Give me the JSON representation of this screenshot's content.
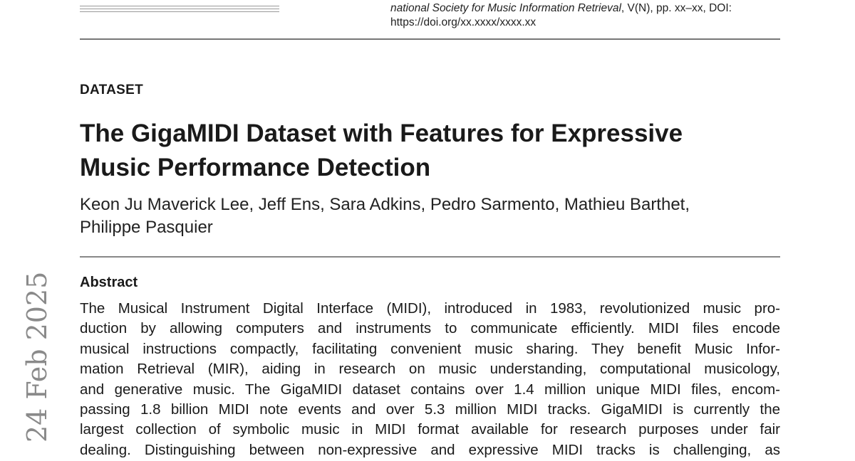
{
  "header": {
    "citation_line1_italic": "national Society for Music Information Retrieval",
    "citation_line1_rest": ", V(N), pp. xx–xx, DOI:",
    "citation_line2": "https://doi.org/xx.xxxx/xxxx.xx"
  },
  "article": {
    "kicker": "DATASET",
    "title_lines": [
      "The GigaMIDI Dataset with Features for Expressive",
      "Music Performance Detection"
    ],
    "author_lines": [
      "Keon Ju Maverick Lee, Jeff Ens, Sara Adkins, Pedro Sarmento, Mathieu Barthet,",
      "Philippe Pasquier"
    ],
    "abstract_heading": "Abstract",
    "abstract_lines": [
      "The Musical Instrument Digital Interface (MIDI), introduced in 1983, revolutionized music pro-",
      "duction by allowing computers and instruments to communicate efficiently.  MIDI files encode",
      "musical instructions compactly, facilitating convenient music sharing. They benefit Music Infor-",
      "mation Retrieval (MIR), aiding in research on music understanding, computational musicology,",
      "and generative music. The GigaMIDI dataset contains over 1.4 million unique MIDI files, encom-",
      "passing 1.8 billion MIDI note events and over 5.3 million MIDI tracks.  GigaMIDI is currently the",
      "largest collection of symbolic music in MIDI format available for research purposes under fair",
      "dealing.  Distinguishing between non-expressive and expressive MIDI tracks is challenging, as"
    ]
  },
  "sidebar_stamp": "24 Feb 2025"
}
